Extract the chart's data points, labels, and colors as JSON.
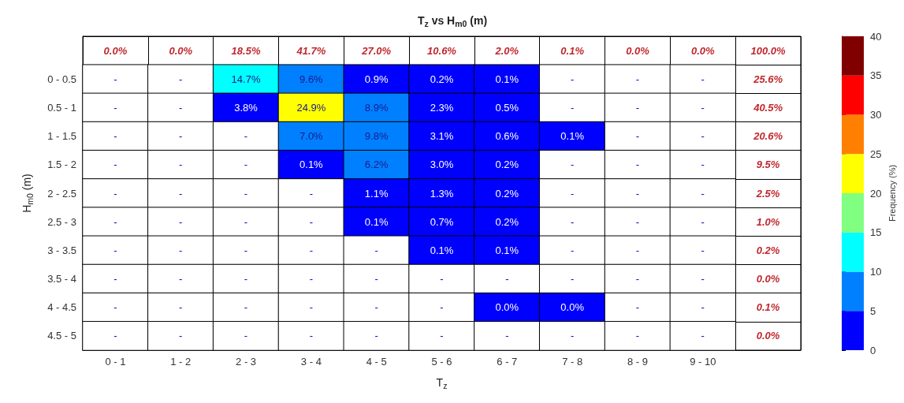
{
  "chart_data": {
    "type": "heatmap",
    "title": "T$_{z}$ vs H$_{m0}$ (m)",
    "xlabel": "T$_{z}$",
    "ylabel": "H$_{m0}$ (m)",
    "clabel": "Frequency (%)",
    "categories": [
      "0 - 1",
      "1 - 2",
      "2 - 3",
      "3 - 4",
      "4 - 5",
      "5 - 6",
      "6 - 7",
      "7 - 8",
      "8 - 9",
      "9 - 10"
    ],
    "y_categories": [
      "0 - 0.5",
      "0.5 - 1",
      "1 - 1.5",
      "1.5 - 2",
      "2 - 2.5",
      "2.5 - 3",
      "3 - 3.5",
      "3.5 - 4",
      "4 - 4.5",
      "4.5 - 5"
    ],
    "cells": [
      [
        null,
        null,
        14.7,
        9.6,
        0.9,
        0.2,
        0.1,
        null,
        null,
        null
      ],
      [
        null,
        null,
        3.8,
        24.9,
        8.9,
        2.3,
        0.5,
        null,
        null,
        null
      ],
      [
        null,
        null,
        null,
        7.0,
        9.8,
        3.1,
        0.6,
        0.1,
        null,
        null
      ],
      [
        null,
        null,
        null,
        0.1,
        6.2,
        3.0,
        0.2,
        null,
        null,
        null
      ],
      [
        null,
        null,
        null,
        null,
        1.1,
        1.3,
        0.2,
        null,
        null,
        null
      ],
      [
        null,
        null,
        null,
        null,
        0.1,
        0.7,
        0.2,
        null,
        null,
        null
      ],
      [
        null,
        null,
        null,
        null,
        null,
        0.1,
        0.1,
        null,
        null,
        null
      ],
      [
        null,
        null,
        null,
        null,
        null,
        null,
        null,
        null,
        null,
        null
      ],
      [
        null,
        null,
        null,
        null,
        null,
        null,
        0.0,
        0.0,
        null,
        null
      ],
      [
        null,
        null,
        null,
        null,
        null,
        null,
        null,
        null,
        null,
        null
      ]
    ],
    "cell_labels": [
      [
        "-",
        "-",
        "14.7%",
        "9.6%",
        "0.9%",
        "0.2%",
        "0.1%",
        "-",
        "-",
        "-"
      ],
      [
        "-",
        "-",
        "3.8%",
        "24.9%",
        "8.9%",
        "2.3%",
        "0.5%",
        "-",
        "-",
        "-"
      ],
      [
        "-",
        "-",
        "-",
        "7.0%",
        "9.8%",
        "3.1%",
        "0.6%",
        "0.1%",
        "-",
        "-"
      ],
      [
        "-",
        "-",
        "-",
        "0.1%",
        "6.2%",
        "3.0%",
        "0.2%",
        "-",
        "-",
        "-"
      ],
      [
        "-",
        "-",
        "-",
        "-",
        "1.1%",
        "1.3%",
        "0.2%",
        "-",
        "-",
        "-"
      ],
      [
        "-",
        "-",
        "-",
        "-",
        "0.1%",
        "0.7%",
        "0.2%",
        "-",
        "-",
        "-"
      ],
      [
        "-",
        "-",
        "-",
        "-",
        "-",
        "0.1%",
        "0.1%",
        "-",
        "-",
        "-"
      ],
      [
        "-",
        "-",
        "-",
        "-",
        "-",
        "-",
        "-",
        "-",
        "-",
        "-"
      ],
      [
        "-",
        "-",
        "-",
        "-",
        "-",
        "-",
        "0.0%",
        "0.0%",
        "-",
        "-"
      ],
      [
        "-",
        "-",
        "-",
        "-",
        "-",
        "-",
        "-",
        "-",
        "-",
        "-"
      ]
    ],
    "annotations": [
      "0.0%",
      "0.0%",
      "18.5%",
      "41.7%",
      "27.0%",
      "10.6%",
      "2.0%",
      "0.1%",
      "0.0%",
      "0.0%",
      "100.0%",
      "25.6%",
      "40.5%",
      "20.6%",
      "9.5%",
      "2.5%",
      "1.0%",
      "0.2%",
      "0.0%",
      "0.1%",
      "0.0%"
    ],
    "clim": [
      0,
      40
    ],
    "cticks": [
      0,
      5,
      10,
      15,
      20,
      25,
      30,
      35,
      40
    ],
    "colors": [
      "#0000ff",
      "#0080ff",
      "#00ffff",
      "#80ff80",
      "#ffff00",
      "#ff8000",
      "#ff0000",
      "#800000"
    ]
  }
}
